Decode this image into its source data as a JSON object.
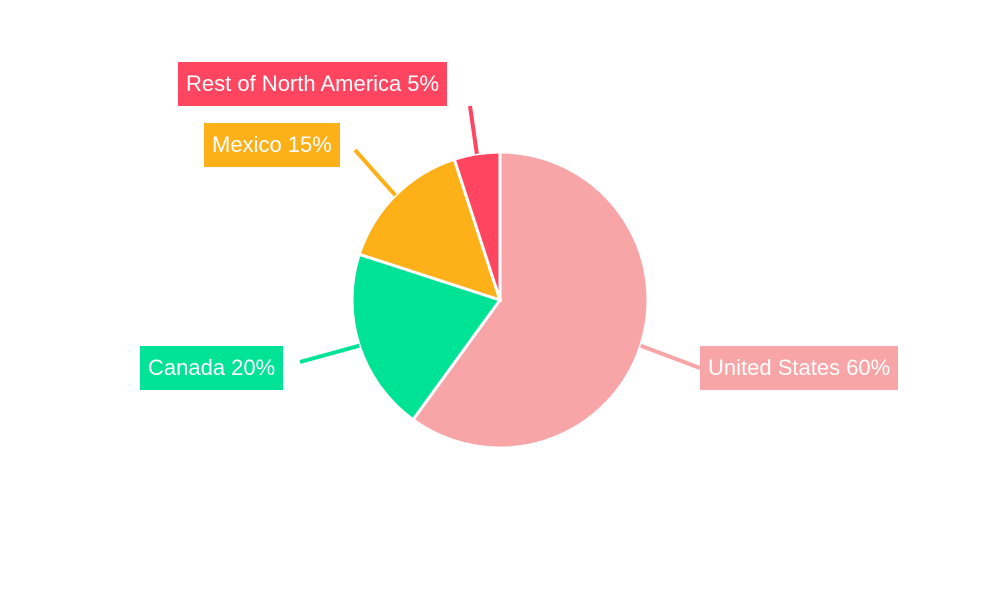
{
  "chart_data": {
    "type": "pie",
    "title": "",
    "categories": [
      "United States",
      "Canada",
      "Mexico",
      "Rest of North America"
    ],
    "values": [
      60,
      20,
      15,
      5
    ],
    "unit": "%",
    "colors": [
      "#f8a5a8",
      "#00e396",
      "#feb019",
      "#ff4560"
    ],
    "labels": [
      "United States 60%",
      "Canada 20%",
      "Mexico 15%",
      "Rest of North America 5%"
    ],
    "start_angle_deg": 0,
    "direction": "clockwise",
    "legend": "none (callout labels)"
  }
}
